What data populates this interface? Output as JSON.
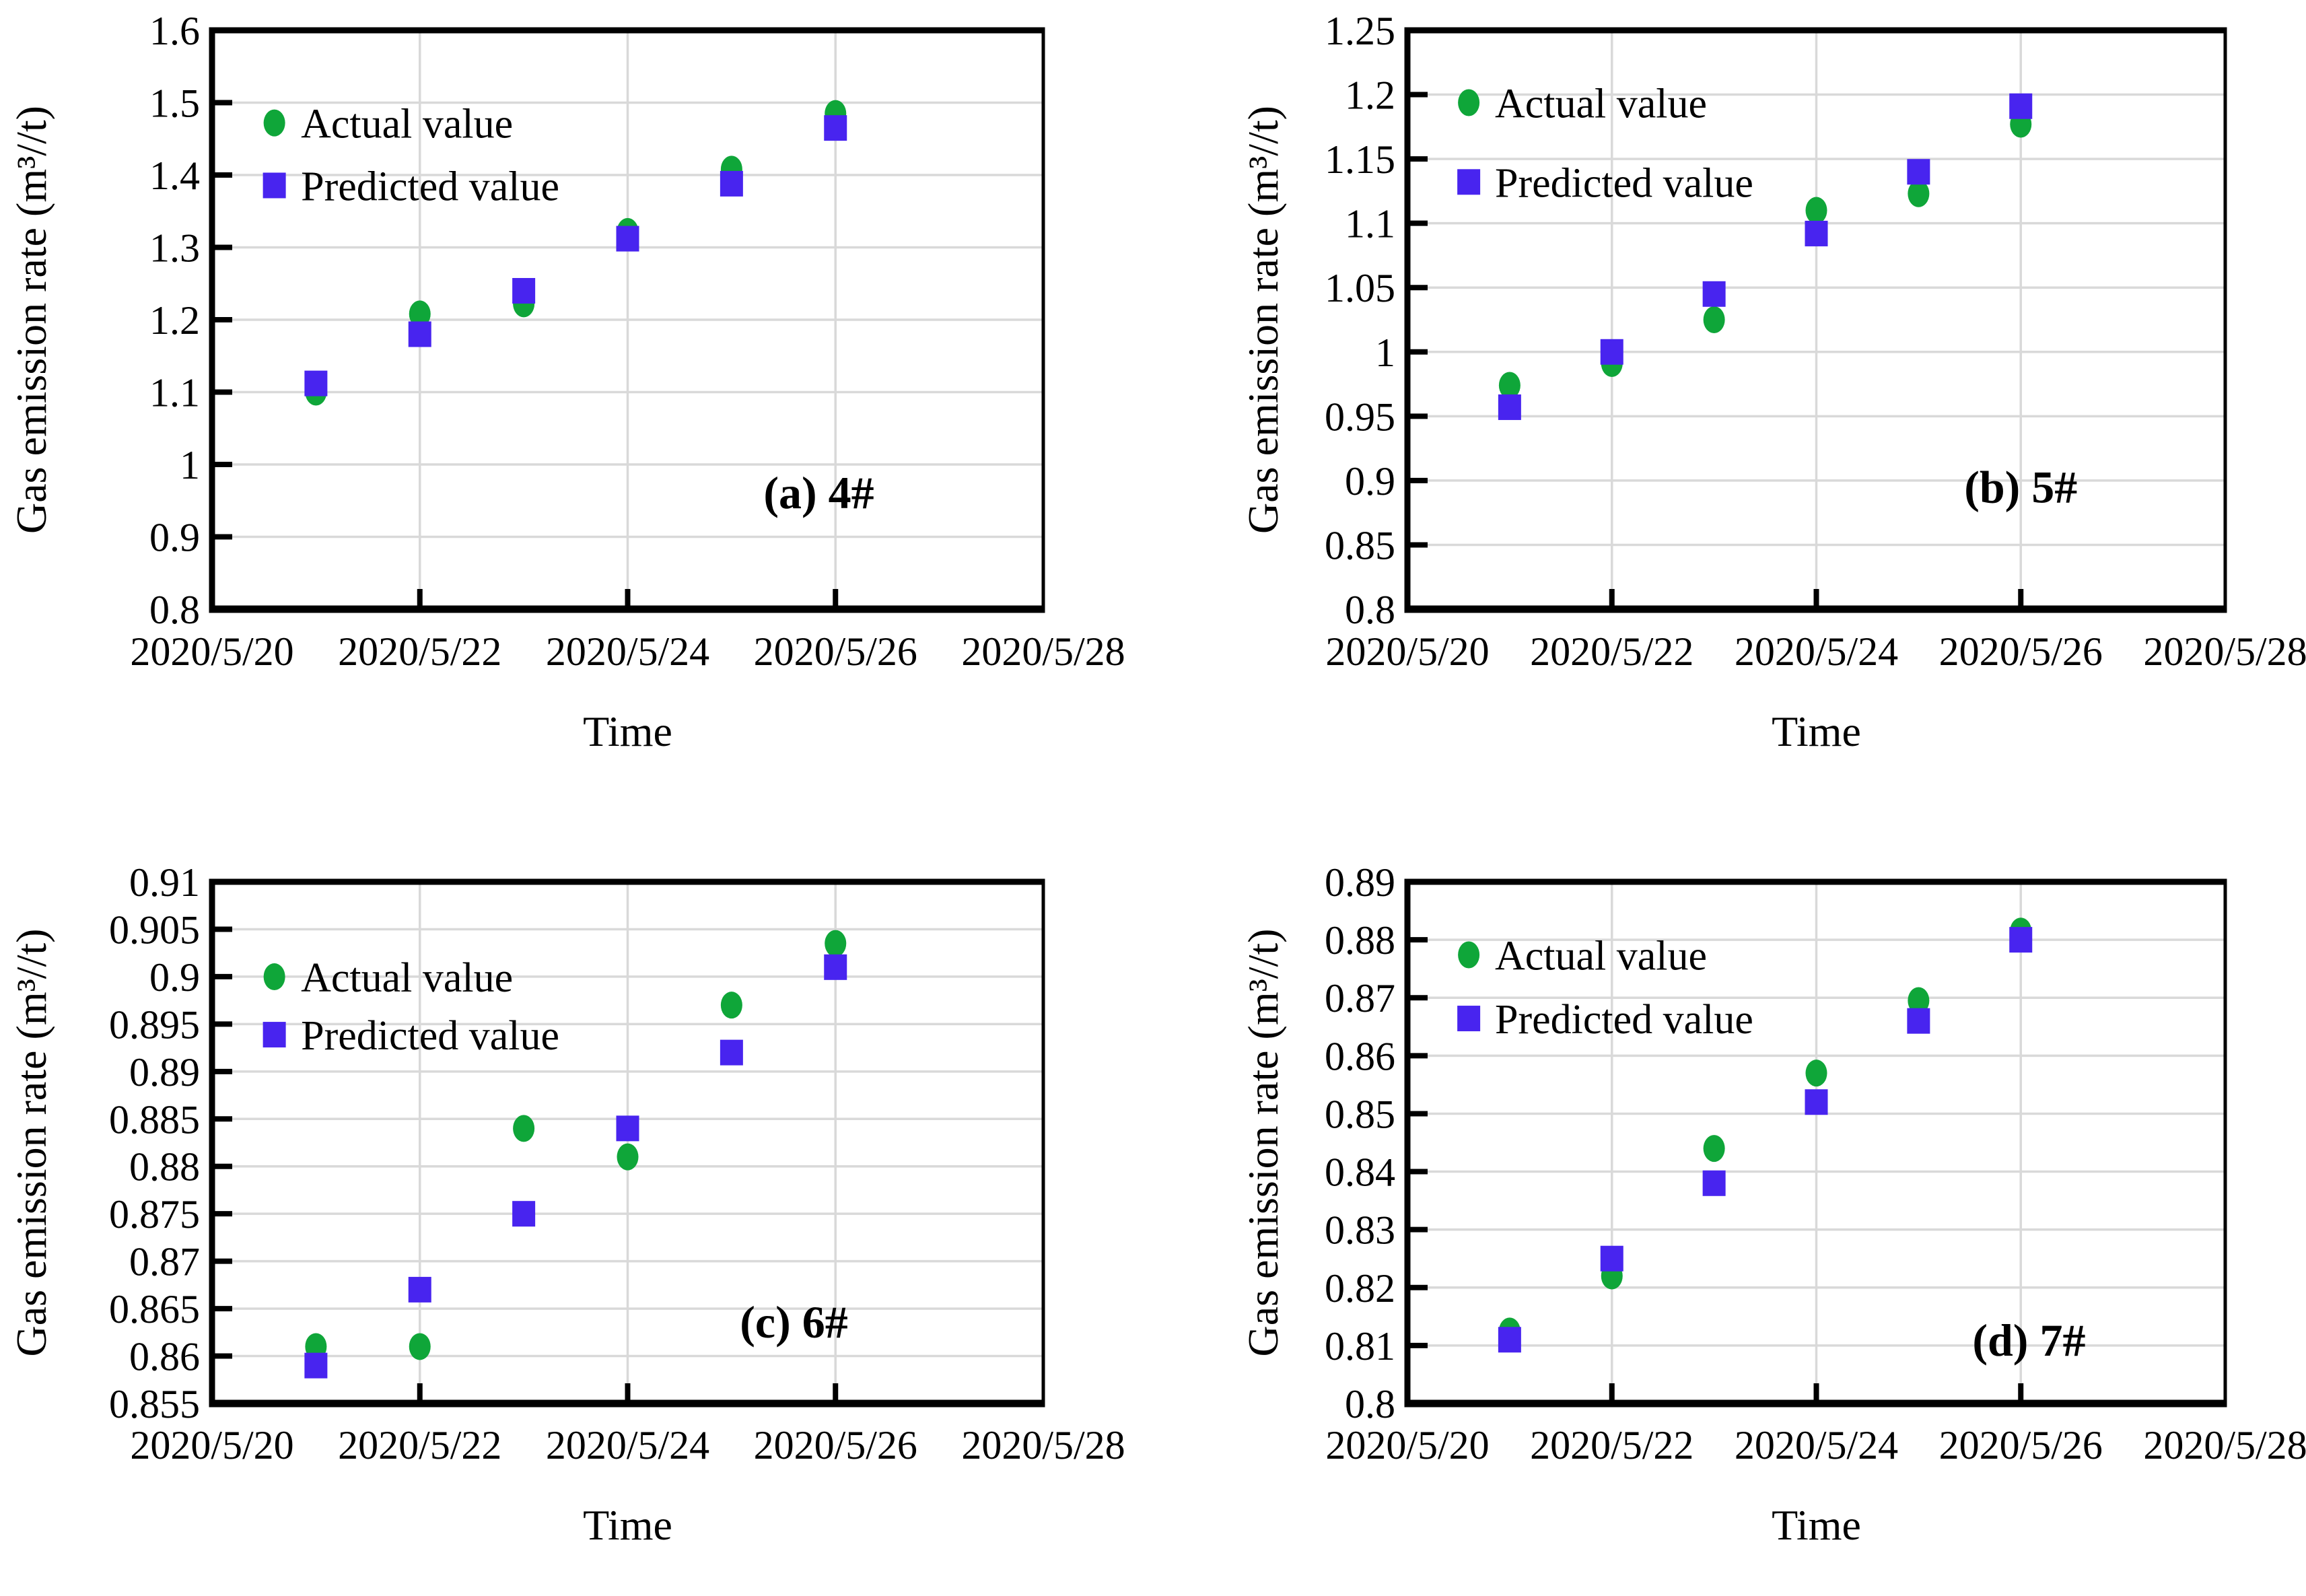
{
  "figure": {
    "background": "#FFFFFF",
    "axis": {
      "x_title": "Time",
      "y_title": "Gas emission rate (m³//t)"
    },
    "legend": {
      "position": "upper-left",
      "items": [
        {
          "label": "Actual value",
          "marker": "circle-icon",
          "color": "#0FA639"
        },
        {
          "label": "Predicted value",
          "marker": "square-icon",
          "color": "#4824EF"
        }
      ]
    },
    "colors": {
      "actual": "#0FA639",
      "predicted": "#4824EF",
      "gridline": "#D9D9D9",
      "axis_line": "#000000",
      "text": "#000000"
    }
  },
  "chart_data": [
    {
      "type": "scatter",
      "panel": "a",
      "annotation": "(a) 4#",
      "x_label": "Time",
      "y_label": "Gas emission rate (m³//t)",
      "x_dates": [
        "2020/5/21",
        "2020/5/22",
        "2020/5/23",
        "2020/5/24",
        "2020/5/25",
        "2020/5/26"
      ],
      "x_day_offsets": [
        1,
        2,
        3,
        4,
        5,
        6
      ],
      "x_tick_labels": [
        "2020/5/20",
        "2020/5/22",
        "2020/5/24",
        "2020/5/26",
        "2020/5/28"
      ],
      "x_tick_offsets": [
        0,
        2,
        4,
        6,
        8
      ],
      "x_grid_offsets": [
        2,
        4,
        6
      ],
      "xlim_days": [
        0,
        8
      ],
      "ylim": [
        0.8,
        1.6
      ],
      "y_ticks": [
        0.8,
        0.9,
        1,
        1.1,
        1.2,
        1.3,
        1.4,
        1.5,
        1.6
      ],
      "y_tick_labels": [
        "0.8",
        "0.9",
        "1",
        "1.1",
        "1.2",
        "1.3",
        "1.4",
        "1.5",
        "1.6"
      ],
      "grid": true,
      "series": [
        {
          "name": "Actual value",
          "values": [
            1.1,
            1.208,
            1.222,
            1.322,
            1.408,
            1.485
          ]
        },
        {
          "name": "Predicted value",
          "values": [
            1.112,
            1.18,
            1.24,
            1.312,
            1.388,
            1.465
          ]
        }
      ],
      "annotation_pos_frac": {
        "x": 0.73,
        "y": 0.8
      },
      "legend_rows_frac": [
        0.16,
        0.268
      ]
    },
    {
      "type": "scatter",
      "panel": "b",
      "annotation": "(b) 5#",
      "x_label": "Time",
      "y_label": "Gas emission rate (m³//t)",
      "x_dates": [
        "2020/5/21",
        "2020/5/22",
        "2020/5/23",
        "2020/5/24",
        "2020/5/25",
        "2020/5/26"
      ],
      "x_day_offsets": [
        1,
        2,
        3,
        4,
        5,
        6
      ],
      "x_tick_labels": [
        "2020/5/20",
        "2020/5/22",
        "2020/5/24",
        "2020/5/26",
        "2020/5/28"
      ],
      "x_tick_offsets": [
        0,
        2,
        4,
        6,
        8
      ],
      "x_grid_offsets": [
        2,
        4,
        6
      ],
      "xlim_days": [
        0,
        8
      ],
      "ylim": [
        0.8,
        1.25
      ],
      "y_ticks": [
        0.8,
        0.85,
        0.9,
        0.95,
        1,
        1.05,
        1.1,
        1.15,
        1.2,
        1.25
      ],
      "y_tick_labels": [
        "0.8",
        "0.85",
        "0.9",
        "0.95",
        "1",
        "1.05",
        "1.1",
        "1.15",
        "1.2",
        "1.25"
      ],
      "grid": true,
      "series": [
        {
          "name": "Actual value",
          "values": [
            0.974,
            0.991,
            1.025,
            1.11,
            1.123,
            1.177
          ]
        },
        {
          "name": "Predicted value",
          "values": [
            0.957,
            1.0,
            1.045,
            1.092,
            1.14,
            1.191
          ]
        }
      ],
      "annotation_pos_frac": {
        "x": 0.75,
        "y": 0.79
      },
      "legend_rows_frac": [
        0.125,
        0.262
      ]
    },
    {
      "type": "scatter",
      "panel": "c",
      "annotation": "(c) 6#",
      "x_label": "Time",
      "y_label": "Gas emission rate (m³//t)",
      "x_dates": [
        "2020/5/21",
        "2020/5/22",
        "2020/5/23",
        "2020/5/24",
        "2020/5/25",
        "2020/5/26"
      ],
      "x_day_offsets": [
        1,
        2,
        3,
        4,
        5,
        6
      ],
      "x_tick_labels": [
        "2020/5/20",
        "2020/5/22",
        "2020/5/24",
        "2020/5/26",
        "2020/5/28"
      ],
      "x_tick_offsets": [
        0,
        2,
        4,
        6,
        8
      ],
      "x_grid_offsets": [
        2,
        4,
        6
      ],
      "xlim_days": [
        0,
        8
      ],
      "ylim": [
        0.855,
        0.91
      ],
      "y_ticks": [
        0.855,
        0.86,
        0.865,
        0.87,
        0.875,
        0.88,
        0.885,
        0.89,
        0.895,
        0.9,
        0.905,
        0.91
      ],
      "y_tick_labels": [
        "0.855",
        "0.86",
        "0.865",
        "0.87",
        "0.875",
        "0.88",
        "0.885",
        "0.89",
        "0.895",
        "0.9",
        "0.905",
        "0.91"
      ],
      "grid": true,
      "series": [
        {
          "name": "Actual value",
          "values": [
            0.861,
            0.861,
            0.884,
            0.881,
            0.897,
            0.9035
          ]
        },
        {
          "name": "Predicted value",
          "values": [
            0.859,
            0.867,
            0.875,
            0.884,
            0.892,
            0.901
          ]
        }
      ],
      "annotation_pos_frac": {
        "x": 0.7,
        "y": 0.845
      },
      "legend_rows_frac": [
        0.182,
        0.293
      ]
    },
    {
      "type": "scatter",
      "panel": "d",
      "annotation": "(d) 7#",
      "x_label": "Time",
      "y_label": "Gas emission rate (m³//t)",
      "x_dates": [
        "2020/5/21",
        "2020/5/22",
        "2020/5/23",
        "2020/5/24",
        "2020/5/25",
        "2020/5/26"
      ],
      "x_day_offsets": [
        1,
        2,
        3,
        4,
        5,
        6
      ],
      "x_tick_labels": [
        "2020/5/20",
        "2020/5/22",
        "2020/5/24",
        "2020/5/26",
        "2020/5/28"
      ],
      "x_tick_offsets": [
        0,
        2,
        4,
        6,
        8
      ],
      "x_grid_offsets": [
        2,
        4,
        6
      ],
      "xlim_days": [
        0,
        8
      ],
      "ylim": [
        0.8,
        0.89
      ],
      "y_ticks": [
        0.8,
        0.81,
        0.82,
        0.83,
        0.84,
        0.85,
        0.86,
        0.87,
        0.88,
        0.89
      ],
      "y_tick_labels": [
        "0.8",
        "0.81",
        "0.82",
        "0.83",
        "0.84",
        "0.85",
        "0.86",
        "0.87",
        "0.88",
        "0.89"
      ],
      "grid": true,
      "series": [
        {
          "name": "Actual value",
          "values": [
            0.8125,
            0.822,
            0.844,
            0.857,
            0.8695,
            0.8815
          ]
        },
        {
          "name": "Predicted value",
          "values": [
            0.811,
            0.825,
            0.838,
            0.852,
            0.866,
            0.88
          ]
        }
      ],
      "annotation_pos_frac": {
        "x": 0.76,
        "y": 0.88
      },
      "legend_rows_frac": [
        0.14,
        0.262
      ]
    }
  ]
}
